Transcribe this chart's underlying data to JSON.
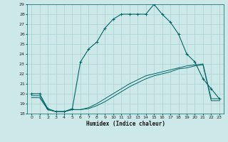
{
  "xlabel": "Humidex (Indice chaleur)",
  "xlim": [
    -0.5,
    23.5
  ],
  "ylim": [
    18,
    29
  ],
  "yticks": [
    18,
    19,
    20,
    21,
    22,
    23,
    24,
    25,
    26,
    27,
    28,
    29
  ],
  "xticks": [
    0,
    1,
    2,
    3,
    4,
    5,
    6,
    7,
    8,
    9,
    10,
    11,
    12,
    13,
    14,
    15,
    16,
    17,
    18,
    19,
    20,
    21,
    22,
    23
  ],
  "background_color": "#cce8e8",
  "grid_color": "#aad0d0",
  "line_color": "#006666",
  "curve1_x": [
    0,
    1,
    2,
    3,
    4,
    5,
    6,
    7,
    8,
    9,
    10,
    11,
    12,
    13,
    14,
    15,
    16,
    17,
    18,
    19,
    20,
    21,
    22,
    23
  ],
  "curve1_y": [
    20.0,
    20.0,
    18.5,
    18.2,
    18.2,
    18.5,
    23.2,
    24.5,
    25.2,
    26.6,
    27.5,
    28.0,
    28.0,
    28.0,
    28.0,
    29.0,
    28.0,
    27.2,
    26.0,
    24.0,
    23.2,
    21.5,
    20.5,
    19.5
  ],
  "curve2_x": [
    0,
    1,
    2,
    3,
    4,
    5,
    6,
    7,
    8,
    9,
    10,
    11,
    12,
    13,
    14,
    15,
    16,
    17,
    18,
    19,
    20,
    21,
    22,
    23
  ],
  "curve2_y": [
    19.8,
    19.8,
    18.4,
    18.2,
    18.2,
    18.4,
    18.4,
    18.6,
    19.0,
    19.5,
    20.0,
    20.5,
    21.0,
    21.4,
    21.8,
    22.0,
    22.2,
    22.4,
    22.6,
    22.8,
    22.9,
    23.0,
    19.5,
    19.5
  ],
  "curve3_x": [
    0,
    1,
    2,
    3,
    4,
    5,
    6,
    7,
    8,
    9,
    10,
    11,
    12,
    13,
    14,
    15,
    16,
    17,
    18,
    19,
    20,
    21,
    22,
    23
  ],
  "curve3_y": [
    19.6,
    19.6,
    18.4,
    18.2,
    18.2,
    18.4,
    18.4,
    18.5,
    18.8,
    19.2,
    19.7,
    20.2,
    20.7,
    21.1,
    21.5,
    21.8,
    22.0,
    22.2,
    22.5,
    22.6,
    22.8,
    22.9,
    19.3,
    19.3
  ]
}
